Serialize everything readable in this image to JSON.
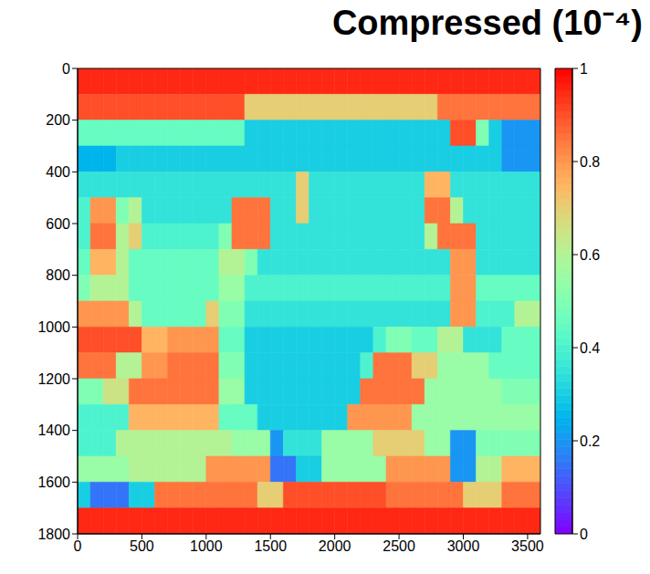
{
  "chart_data": {
    "type": "heatmap",
    "title": "Compressed (10⁻⁴)",
    "xlim": [
      0,
      3600
    ],
    "xticks": [
      0,
      500,
      1000,
      1500,
      2000,
      2500,
      3000,
      3500
    ],
    "ylim": [
      0,
      1800
    ],
    "yticks": [
      0,
      200,
      400,
      600,
      800,
      1000,
      1200,
      1400,
      1600,
      1800
    ],
    "x_bins": [
      0,
      100,
      200,
      300,
      400,
      500,
      600,
      700,
      800,
      900,
      1000,
      1100,
      1200,
      1300,
      1400,
      1500,
      1600,
      1700,
      1800,
      1900,
      2000,
      2100,
      2200,
      2300,
      2400,
      2500,
      2600,
      2700,
      2800,
      2900,
      3000,
      3100,
      3200,
      3300,
      3400,
      3500,
      3600
    ],
    "y_bins": [
      0,
      100,
      200,
      300,
      400,
      500,
      600,
      700,
      800,
      900,
      1000,
      1100,
      1200,
      1300,
      1400,
      1500,
      1600,
      1700,
      1800
    ],
    "cells": [
      [
        0.95,
        0.95,
        0.95,
        0.95,
        0.95,
        0.95,
        0.95,
        0.95,
        0.95,
        0.95,
        0.95,
        0.95,
        0.95,
        0.95,
        0.95,
        0.95,
        0.95,
        0.95,
        0.95,
        0.95,
        0.95,
        0.95,
        0.95,
        0.95,
        0.95,
        0.95,
        0.95,
        0.95,
        0.95,
        0.95,
        0.95,
        0.95,
        0.95,
        0.95,
        0.95,
        0.95
      ],
      [
        0.9,
        0.9,
        0.9,
        0.9,
        0.9,
        0.9,
        0.9,
        0.9,
        0.9,
        0.9,
        0.9,
        0.9,
        0.9,
        0.7,
        0.7,
        0.7,
        0.7,
        0.7,
        0.7,
        0.7,
        0.7,
        0.7,
        0.7,
        0.7,
        0.7,
        0.7,
        0.7,
        0.7,
        0.85,
        0.85,
        0.85,
        0.85,
        0.85,
        0.85,
        0.85,
        0.85
      ],
      [
        0.45,
        0.45,
        0.45,
        0.45,
        0.45,
        0.45,
        0.45,
        0.45,
        0.45,
        0.45,
        0.45,
        0.45,
        0.45,
        0.3,
        0.3,
        0.3,
        0.3,
        0.3,
        0.3,
        0.3,
        0.3,
        0.3,
        0.3,
        0.3,
        0.3,
        0.3,
        0.3,
        0.3,
        0.3,
        0.9,
        0.9,
        0.5,
        0.3,
        0.2,
        0.2,
        0.2
      ],
      [
        0.25,
        0.25,
        0.25,
        0.3,
        0.3,
        0.3,
        0.3,
        0.3,
        0.3,
        0.3,
        0.3,
        0.3,
        0.3,
        0.3,
        0.3,
        0.3,
        0.3,
        0.3,
        0.3,
        0.3,
        0.3,
        0.3,
        0.3,
        0.3,
        0.3,
        0.3,
        0.3,
        0.3,
        0.3,
        0.3,
        0.3,
        0.3,
        0.3,
        0.2,
        0.2,
        0.2
      ],
      [
        0.35,
        0.35,
        0.35,
        0.35,
        0.35,
        0.35,
        0.35,
        0.35,
        0.35,
        0.35,
        0.35,
        0.35,
        0.35,
        0.35,
        0.35,
        0.35,
        0.35,
        0.7,
        0.35,
        0.35,
        0.35,
        0.35,
        0.35,
        0.35,
        0.35,
        0.35,
        0.35,
        0.75,
        0.75,
        0.35,
        0.35,
        0.35,
        0.35,
        0.35,
        0.35,
        0.35
      ],
      [
        0.4,
        0.8,
        0.8,
        0.5,
        0.6,
        0.35,
        0.35,
        0.35,
        0.35,
        0.35,
        0.35,
        0.35,
        0.85,
        0.85,
        0.85,
        0.35,
        0.35,
        0.7,
        0.35,
        0.35,
        0.35,
        0.35,
        0.35,
        0.35,
        0.35,
        0.35,
        0.35,
        0.85,
        0.85,
        0.6,
        0.35,
        0.35,
        0.35,
        0.35,
        0.35,
        0.35
      ],
      [
        0.4,
        0.85,
        0.85,
        0.6,
        0.7,
        0.4,
        0.4,
        0.4,
        0.4,
        0.4,
        0.4,
        0.5,
        0.85,
        0.85,
        0.85,
        0.35,
        0.35,
        0.35,
        0.35,
        0.35,
        0.35,
        0.35,
        0.35,
        0.35,
        0.35,
        0.35,
        0.35,
        0.6,
        0.85,
        0.85,
        0.85,
        0.35,
        0.35,
        0.35,
        0.35,
        0.35
      ],
      [
        0.45,
        0.75,
        0.75,
        0.6,
        0.45,
        0.45,
        0.45,
        0.45,
        0.45,
        0.45,
        0.45,
        0.6,
        0.6,
        0.5,
        0.35,
        0.35,
        0.35,
        0.35,
        0.35,
        0.35,
        0.35,
        0.35,
        0.35,
        0.35,
        0.35,
        0.35,
        0.35,
        0.35,
        0.35,
        0.8,
        0.8,
        0.35,
        0.35,
        0.35,
        0.35,
        0.35
      ],
      [
        0.5,
        0.6,
        0.6,
        0.6,
        0.45,
        0.45,
        0.45,
        0.45,
        0.45,
        0.45,
        0.45,
        0.55,
        0.55,
        0.4,
        0.4,
        0.4,
        0.4,
        0.4,
        0.4,
        0.4,
        0.4,
        0.4,
        0.4,
        0.4,
        0.4,
        0.4,
        0.4,
        0.4,
        0.4,
        0.8,
        0.8,
        0.45,
        0.45,
        0.45,
        0.45,
        0.45
      ],
      [
        0.8,
        0.8,
        0.8,
        0.8,
        0.6,
        0.45,
        0.45,
        0.45,
        0.45,
        0.45,
        0.7,
        0.5,
        0.5,
        0.35,
        0.35,
        0.35,
        0.35,
        0.35,
        0.35,
        0.35,
        0.35,
        0.35,
        0.35,
        0.35,
        0.35,
        0.35,
        0.35,
        0.35,
        0.35,
        0.8,
        0.8,
        0.4,
        0.4,
        0.4,
        0.6,
        0.6
      ],
      [
        0.9,
        0.9,
        0.9,
        0.9,
        0.9,
        0.75,
        0.75,
        0.8,
        0.8,
        0.8,
        0.8,
        0.45,
        0.45,
        0.3,
        0.3,
        0.3,
        0.3,
        0.3,
        0.3,
        0.3,
        0.3,
        0.3,
        0.3,
        0.4,
        0.5,
        0.5,
        0.45,
        0.45,
        0.6,
        0.6,
        0.35,
        0.35,
        0.35,
        0.45,
        0.45,
        0.45
      ],
      [
        0.85,
        0.85,
        0.85,
        0.6,
        0.6,
        0.8,
        0.8,
        0.85,
        0.85,
        0.85,
        0.85,
        0.5,
        0.5,
        0.3,
        0.3,
        0.3,
        0.3,
        0.3,
        0.3,
        0.3,
        0.3,
        0.3,
        0.4,
        0.85,
        0.85,
        0.85,
        0.7,
        0.7,
        0.55,
        0.55,
        0.55,
        0.55,
        0.45,
        0.45,
        0.45,
        0.45
      ],
      [
        0.5,
        0.5,
        0.65,
        0.65,
        0.85,
        0.85,
        0.85,
        0.85,
        0.85,
        0.85,
        0.85,
        0.55,
        0.55,
        0.3,
        0.3,
        0.3,
        0.3,
        0.3,
        0.3,
        0.3,
        0.3,
        0.3,
        0.85,
        0.85,
        0.85,
        0.85,
        0.85,
        0.55,
        0.55,
        0.55,
        0.55,
        0.55,
        0.55,
        0.5,
        0.5,
        0.5
      ],
      [
        0.4,
        0.4,
        0.4,
        0.4,
        0.75,
        0.75,
        0.75,
        0.75,
        0.75,
        0.75,
        0.75,
        0.45,
        0.45,
        0.45,
        0.3,
        0.3,
        0.3,
        0.3,
        0.3,
        0.3,
        0.3,
        0.8,
        0.8,
        0.8,
        0.8,
        0.8,
        0.55,
        0.55,
        0.55,
        0.55,
        0.55,
        0.55,
        0.55,
        0.55,
        0.55,
        0.55
      ],
      [
        0.4,
        0.4,
        0.4,
        0.6,
        0.6,
        0.6,
        0.6,
        0.6,
        0.6,
        0.6,
        0.6,
        0.6,
        0.55,
        0.55,
        0.55,
        0.2,
        0.35,
        0.35,
        0.35,
        0.55,
        0.55,
        0.55,
        0.55,
        0.7,
        0.7,
        0.7,
        0.7,
        0.55,
        0.55,
        0.2,
        0.2,
        0.5,
        0.5,
        0.5,
        0.5,
        0.5
      ],
      [
        0.55,
        0.55,
        0.55,
        0.55,
        0.6,
        0.6,
        0.6,
        0.6,
        0.6,
        0.6,
        0.8,
        0.8,
        0.8,
        0.8,
        0.8,
        0.15,
        0.15,
        0.3,
        0.3,
        0.55,
        0.55,
        0.55,
        0.55,
        0.55,
        0.8,
        0.8,
        0.8,
        0.8,
        0.8,
        0.2,
        0.2,
        0.6,
        0.6,
        0.75,
        0.75,
        0.75
      ],
      [
        0.3,
        0.15,
        0.15,
        0.15,
        0.3,
        0.3,
        0.85,
        0.85,
        0.85,
        0.85,
        0.85,
        0.85,
        0.85,
        0.85,
        0.7,
        0.7,
        0.9,
        0.9,
        0.9,
        0.9,
        0.9,
        0.9,
        0.9,
        0.9,
        0.85,
        0.85,
        0.85,
        0.85,
        0.85,
        0.85,
        0.7,
        0.7,
        0.7,
        0.85,
        0.85,
        0.85
      ],
      [
        0.95,
        0.95,
        0.95,
        0.95,
        0.95,
        0.95,
        0.95,
        0.95,
        0.95,
        0.95,
        0.95,
        0.95,
        0.95,
        0.95,
        0.95,
        0.95,
        0.95,
        0.95,
        0.95,
        0.95,
        0.95,
        0.95,
        0.95,
        0.95,
        0.95,
        0.95,
        0.95,
        0.95,
        0.95,
        0.95,
        0.95,
        0.95,
        0.95,
        0.95,
        0.95,
        0.95
      ]
    ],
    "colorbar": {
      "range": [
        0,
        1
      ],
      "ticks": [
        0,
        0.2,
        0.4,
        0.6,
        0.8,
        1
      ]
    }
  }
}
